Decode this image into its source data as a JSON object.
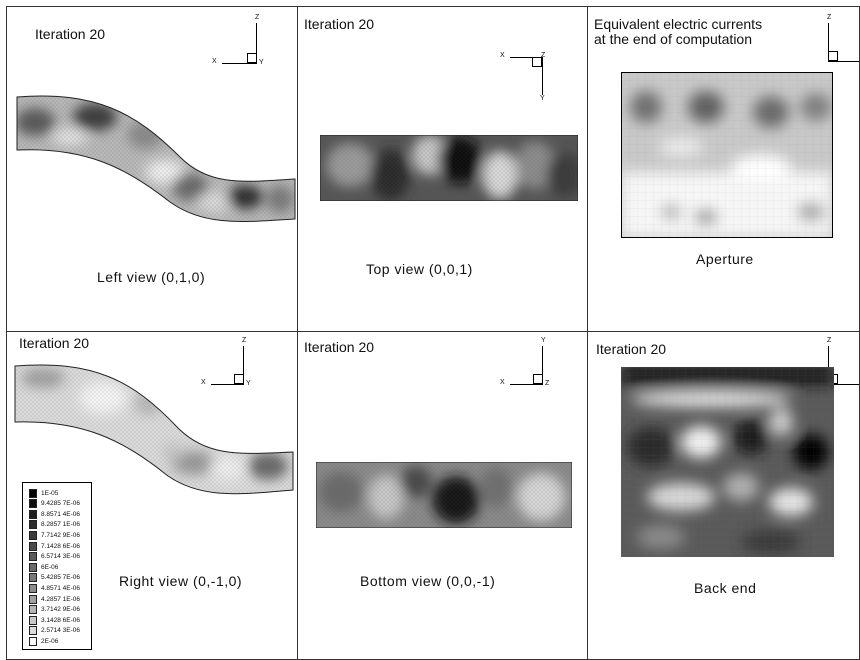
{
  "panels": {
    "left_view": {
      "title": "Iteration 20",
      "caption": "Left view (0,1,0)"
    },
    "top_view": {
      "title": "Iteration 20",
      "caption": "Top view (0,0,1)"
    },
    "aperture": {
      "title": "Equivalent electric currents\nat the end of computation",
      "caption": "Aperture"
    },
    "right_view": {
      "title": "Iteration 20",
      "caption": "Right view (0,-1,0)"
    },
    "bottom_view": {
      "title": "Iteration 20",
      "caption": "Bottom view (0,0,-1)"
    },
    "back_end": {
      "title": "Iteration 20",
      "caption": "Back end"
    }
  },
  "axes_labels": {
    "left_view": {
      "h": "X",
      "v": "Z",
      "o": "Y"
    },
    "top_view": {
      "h": "X",
      "v": "Y",
      "o": "Z"
    },
    "aperture": {
      "h": "",
      "v": "Z",
      "o": ""
    },
    "right_view": {
      "h": "X",
      "v": "Z",
      "o": "Y"
    },
    "bottom_view": {
      "h": "X",
      "v": "Y",
      "o": "Z"
    },
    "back_end": {
      "h": "",
      "v": "Z",
      "o": ""
    }
  },
  "legend": {
    "entries": [
      {
        "label": "1E-05",
        "gray": 0
      },
      {
        "label": "9.4285 7E-06",
        "gray": 15
      },
      {
        "label": "8.8571 4E-06",
        "gray": 30
      },
      {
        "label": "8.2857 1E-06",
        "gray": 45
      },
      {
        "label": "7.7142 9E-06",
        "gray": 60
      },
      {
        "label": "7.1428 6E-06",
        "gray": 75
      },
      {
        "label": "6.5714 3E-06",
        "gray": 90
      },
      {
        "label": "6E-06",
        "gray": 105
      },
      {
        "label": "5.4285 7E-06",
        "gray": 120
      },
      {
        "label": "4.8571 4E-06",
        "gray": 140
      },
      {
        "label": "4.2857 1E-06",
        "gray": 160
      },
      {
        "label": "3.7142 9E-06",
        "gray": 180
      },
      {
        "label": "3.1428 6E-06",
        "gray": 200
      },
      {
        "label": "2.5714 3E-06",
        "gray": 220
      },
      {
        "label": "2E-06",
        "gray": 250
      }
    ]
  }
}
